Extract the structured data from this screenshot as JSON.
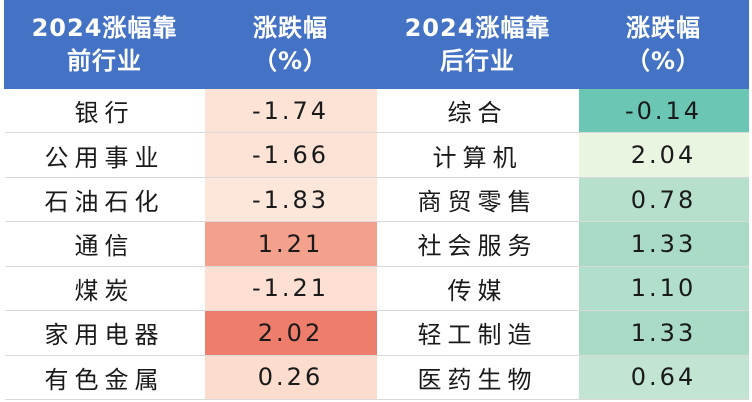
{
  "headers": {
    "before_industry": [
      "2024涨幅靠",
      "前行业"
    ],
    "before_change": [
      "涨跌幅",
      "（%）"
    ],
    "after_industry": [
      "2024涨幅靠",
      "后行业"
    ],
    "after_change": [
      "涨跌幅",
      "（%）"
    ]
  },
  "rows": [
    {
      "before_name": "银行",
      "before_value": "-1.74",
      "after_name": "综合",
      "after_value": "-0.14"
    },
    {
      "before_name": "公用事业",
      "before_value": "-1.66",
      "after_name": "计算机",
      "after_value": "2.04"
    },
    {
      "before_name": "石油石化",
      "before_value": "-1.83",
      "after_name": "商贸零售",
      "after_value": "0.78"
    },
    {
      "before_name": "通信",
      "before_value": "1.21",
      "after_name": "社会服务",
      "after_value": "1.33"
    },
    {
      "before_name": "煤炭",
      "before_value": "-1.21",
      "after_name": "传媒",
      "after_value": "1.10"
    },
    {
      "before_name": "家用电器",
      "before_value": "2.02",
      "after_name": "轻工制造",
      "after_value": "1.33"
    },
    {
      "before_name": "有色金属",
      "before_value": "0.26",
      "after_name": "医药生物",
      "after_value": "0.64"
    }
  ],
  "colors": {
    "header_bg": "#4472c4",
    "before_cells": [
      "#fde3d6",
      "#fde3d6",
      "#fde6da",
      "#f3a08c",
      "#fde0d3",
      "#ee7e6b",
      "#fcdccd"
    ],
    "after_cells": [
      "#6cc6b4",
      "#e9f4e1",
      "#b6e0cc",
      "#a9dbc6",
      "#b2dfcb",
      "#a9dbc6",
      "#c1e5d2"
    ]
  }
}
